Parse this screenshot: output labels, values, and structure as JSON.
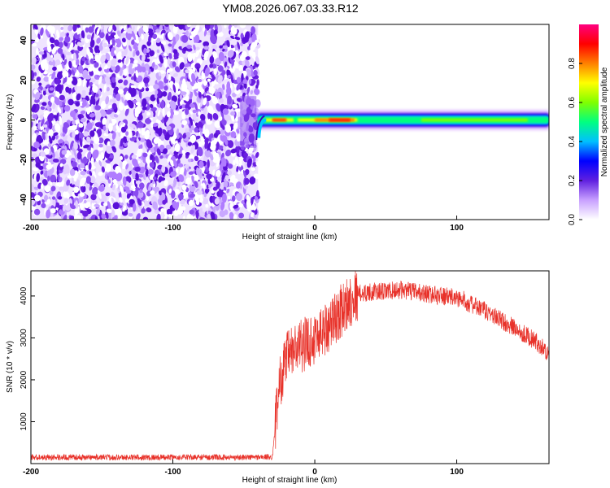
{
  "figure": {
    "title": "YM08.2026.067.03.33.R12"
  },
  "chart_data": [
    {
      "type": "heatmap",
      "xlabel": "Height of straight line (km)",
      "ylabel": "Frequency (Hz)",
      "xlim": [
        -200,
        165
      ],
      "ylim": [
        -50,
        48
      ],
      "xticks": [
        -200,
        -100,
        0,
        100
      ],
      "yticks": [
        -40,
        -20,
        0,
        20,
        40
      ],
      "colorbar": {
        "label": "Normalized spectral amplitude",
        "range": [
          0,
          1
        ],
        "ticks": [
          "0.0",
          "0.2",
          "0.4",
          "0.6",
          "0.8"
        ],
        "colors": [
          "#ffffff",
          "#c8a0ff",
          "#6020e0",
          "#0000ff",
          "#00c0ff",
          "#00ff80",
          "#80ff00",
          "#ffff00",
          "#ff8000",
          "#ff0000",
          "#ff0080"
        ]
      },
      "noise_region": {
        "x": [
          -200,
          -40
        ],
        "frequency": [
          -50,
          48
        ]
      },
      "signal_band": {
        "x": [
          -40,
          165
        ],
        "frequency_center": 0,
        "frequency_halfwidth": 3
      },
      "grid": false
    },
    {
      "type": "line",
      "xlabel": "Height of straight line (km)",
      "ylabel": "SNR (10 * v/v)",
      "xlim": [
        -200,
        165
      ],
      "ylim": [
        0,
        4600
      ],
      "xticks": [
        -200,
        -100,
        0,
        100
      ],
      "yticks": [
        1000,
        2000,
        3000,
        4000
      ],
      "series": [
        {
          "color": "#e8322a",
          "x": [
            -200,
            -150,
            -100,
            -50,
            -30,
            -28,
            -25,
            -20,
            -15,
            -10,
            -5,
            0,
            10,
            20,
            25,
            30,
            40,
            50,
            60,
            70,
            80,
            90,
            100,
            105,
            110,
            120,
            130,
            140,
            150,
            160,
            165
          ],
          "y": [
            150,
            150,
            150,
            150,
            160,
            800,
            1900,
            2500,
            2700,
            2800,
            2900,
            3000,
            3300,
            3700,
            3900,
            4050,
            4100,
            4100,
            4150,
            4100,
            4050,
            4000,
            3950,
            3900,
            3800,
            3650,
            3450,
            3250,
            3050,
            2800,
            2600
          ]
        }
      ],
      "grid": false
    }
  ]
}
